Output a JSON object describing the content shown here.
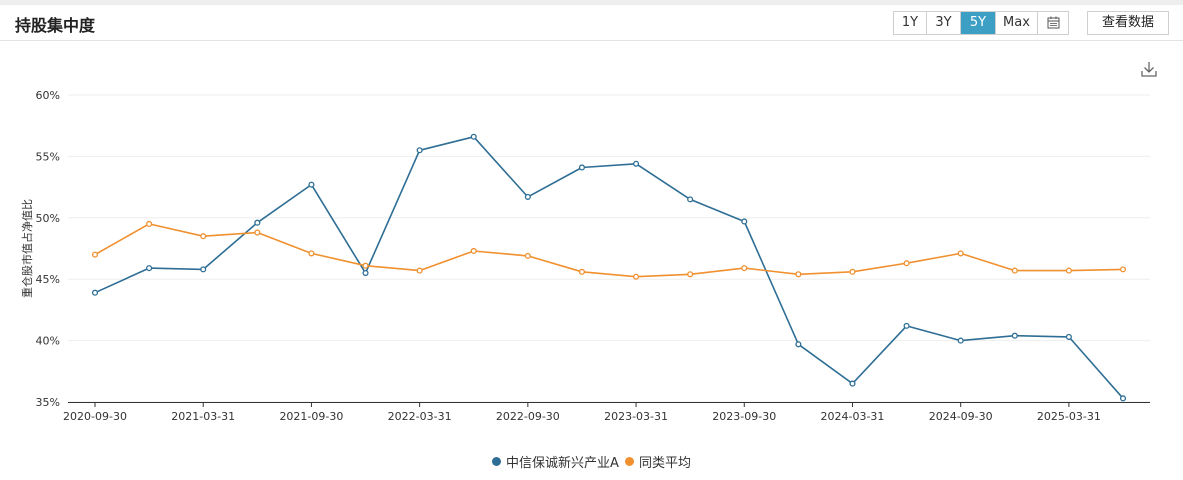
{
  "header": {
    "title": "持股集中度",
    "ranges": [
      "1Y",
      "3Y",
      "5Y",
      "Max"
    ],
    "active_range": "5Y",
    "view_data_label": "查看数据"
  },
  "icons": {
    "calendar": "calendar-icon",
    "download": "download-icon"
  },
  "colors": {
    "accent": "#3e9fc4",
    "series_fund": "#2e6e95",
    "series_avg": "#f0902e"
  },
  "chart_data": {
    "type": "line",
    "ylabel": "重仓股市值占净值比",
    "xlabel": "",
    "ylim": [
      35,
      60
    ],
    "yticks": [
      "60%",
      "55%",
      "50%",
      "45%",
      "40%",
      "35%"
    ],
    "x_tick_labels": [
      "2020-09-30",
      "2021-03-31",
      "2021-09-30",
      "2022-03-31",
      "2022-09-30",
      "2023-03-31",
      "2023-09-30",
      "2024-03-31",
      "2024-09-30",
      "2025-03-31"
    ],
    "x": [
      "2020-09-30",
      "2020-12-31",
      "2021-03-31",
      "2021-06-30",
      "2021-09-30",
      "2021-12-31",
      "2022-03-31",
      "2022-06-30",
      "2022-09-30",
      "2022-12-31",
      "2023-03-31",
      "2023-06-30",
      "2023-09-30",
      "2023-12-31",
      "2024-03-31",
      "2024-06-30",
      "2024-09-30",
      "2024-12-31",
      "2025-03-31",
      "2025-06-30"
    ],
    "series": [
      {
        "name": "中信保诚新兴产业A",
        "color": "#2e6e95",
        "values": [
          43.9,
          45.9,
          45.8,
          49.6,
          52.7,
          45.5,
          55.5,
          56.6,
          51.7,
          54.1,
          54.4,
          51.5,
          49.7,
          39.7,
          36.5,
          41.2,
          40.0,
          40.4,
          40.3,
          35.3
        ]
      },
      {
        "name": "同类平均",
        "color": "#f0902e",
        "values": [
          47.0,
          49.5,
          48.5,
          48.8,
          47.1,
          46.1,
          45.7,
          47.3,
          46.9,
          45.6,
          45.2,
          45.4,
          45.9,
          45.4,
          45.6,
          46.3,
          47.1,
          45.7,
          45.7,
          45.8
        ]
      }
    ],
    "grid": true,
    "legend_position": "bottom-center"
  }
}
